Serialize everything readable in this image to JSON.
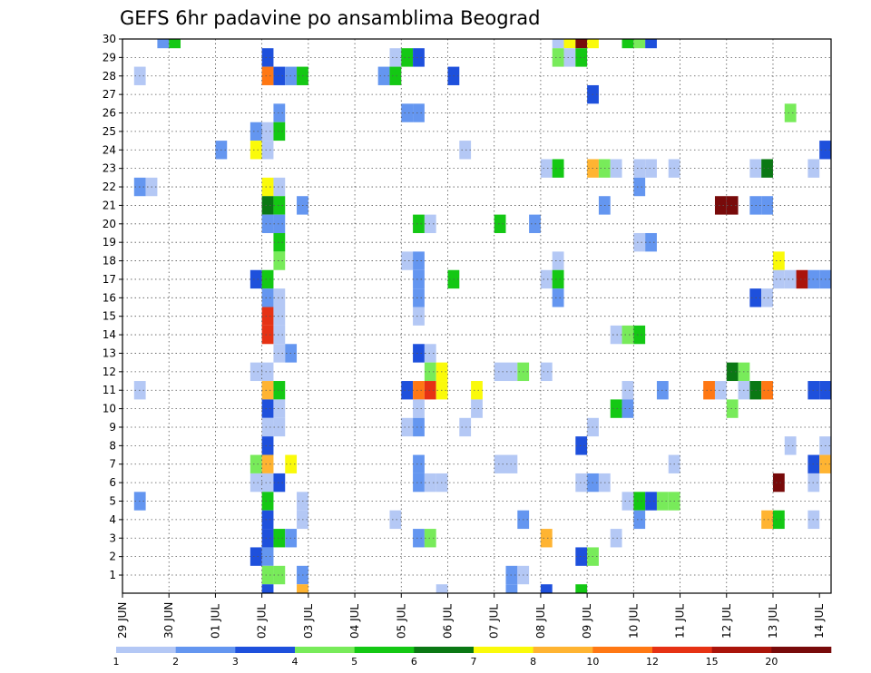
{
  "chart_data": {
    "type": "heatmap",
    "title": "GEFS 6hr padavine po ansamblima Beograd",
    "x_ticks": [
      "29 JUN",
      "30 JUN",
      "01 JUL",
      "02 JUL",
      "03 JUL",
      "04 JUL",
      "05 JUL",
      "06 JUL",
      "07 JUL",
      "08 JUL",
      "09 JUL",
      "10 JUL",
      "11 JUL",
      "12 JUL",
      "13 JUL",
      "14 JUL"
    ],
    "y_ticks": [
      "1",
      "2",
      "3",
      "4",
      "5",
      "6",
      "7",
      "8",
      "9",
      "10",
      "11",
      "12",
      "13",
      "14",
      "15",
      "16",
      "17",
      "18",
      "19",
      "20",
      "21",
      "22",
      "23",
      "24",
      "25",
      "26",
      "27",
      "28",
      "29",
      "30"
    ],
    "x_step_hours": 6,
    "colorbar": {
      "labels": [
        "1",
        "2",
        "3",
        "4",
        "5",
        "6",
        "7",
        "8",
        "10",
        "12",
        "15",
        "20"
      ],
      "colors": [
        "#b4c8f5",
        "#6496f0",
        "#1e50dc",
        "#78eb5a",
        "#14c814",
        "#0a7814",
        "#fafa0a",
        "#ffb432",
        "#ff7814",
        "#e63214",
        "#aa140a",
        "#780a0a"
      ]
    },
    "cells": [
      [
        30,
        3,
        2
      ],
      [
        30,
        4,
        5
      ],
      [
        30,
        37,
        1
      ],
      [
        30,
        38,
        7
      ],
      [
        30,
        39,
        12
      ],
      [
        30,
        40,
        7
      ],
      [
        30,
        43,
        5
      ],
      [
        30,
        44,
        4
      ],
      [
        30,
        45,
        3
      ],
      [
        29,
        12,
        3
      ],
      [
        29,
        23,
        1
      ],
      [
        29,
        24,
        5
      ],
      [
        29,
        25,
        3
      ],
      [
        29,
        37,
        4
      ],
      [
        29,
        38,
        1
      ],
      [
        29,
        39,
        5
      ],
      [
        28,
        1,
        1
      ],
      [
        28,
        12,
        9
      ],
      [
        28,
        13,
        3
      ],
      [
        28,
        14,
        2
      ],
      [
        28,
        15,
        5
      ],
      [
        28,
        22,
        2
      ],
      [
        28,
        23,
        5
      ],
      [
        28,
        28,
        3
      ],
      [
        27,
        40,
        3
      ],
      [
        26,
        13,
        2
      ],
      [
        26,
        24,
        2
      ],
      [
        26,
        25,
        2
      ],
      [
        26,
        57,
        4
      ],
      [
        25,
        11,
        2
      ],
      [
        25,
        12,
        1
      ],
      [
        25,
        13,
        5
      ],
      [
        24,
        8,
        2
      ],
      [
        24,
        11,
        7
      ],
      [
        24,
        12,
        1
      ],
      [
        24,
        29,
        1
      ],
      [
        24,
        60,
        3
      ],
      [
        23,
        36,
        1
      ],
      [
        23,
        37,
        5
      ],
      [
        23,
        40,
        8
      ],
      [
        23,
        41,
        4
      ],
      [
        23,
        42,
        1
      ],
      [
        23,
        44,
        1
      ],
      [
        23,
        45,
        1
      ],
      [
        23,
        47,
        1
      ],
      [
        23,
        54,
        1
      ],
      [
        23,
        55,
        6
      ],
      [
        23,
        59,
        1
      ],
      [
        22,
        1,
        2
      ],
      [
        22,
        2,
        1
      ],
      [
        22,
        12,
        7
      ],
      [
        22,
        13,
        1
      ],
      [
        22,
        44,
        2
      ],
      [
        21,
        12,
        6
      ],
      [
        21,
        13,
        5
      ],
      [
        21,
        15,
        2
      ],
      [
        21,
        41,
        2
      ],
      [
        21,
        51,
        12
      ],
      [
        21,
        52,
        12
      ],
      [
        21,
        54,
        2
      ],
      [
        21,
        55,
        2
      ],
      [
        20,
        12,
        2
      ],
      [
        20,
        13,
        2
      ],
      [
        20,
        25,
        5
      ],
      [
        20,
        26,
        1
      ],
      [
        20,
        32,
        5
      ],
      [
        20,
        35,
        2
      ],
      [
        19,
        13,
        5
      ],
      [
        19,
        44,
        1
      ],
      [
        19,
        45,
        2
      ],
      [
        18,
        13,
        4
      ],
      [
        18,
        24,
        1
      ],
      [
        18,
        25,
        2
      ],
      [
        18,
        37,
        1
      ],
      [
        18,
        56,
        7
      ],
      [
        17,
        11,
        3
      ],
      [
        17,
        12,
        5
      ],
      [
        17,
        25,
        2
      ],
      [
        17,
        28,
        5
      ],
      [
        17,
        36,
        1
      ],
      [
        17,
        37,
        5
      ],
      [
        17,
        56,
        1
      ],
      [
        17,
        57,
        1
      ],
      [
        17,
        58,
        11
      ],
      [
        17,
        59,
        2
      ],
      [
        17,
        60,
        2
      ],
      [
        16,
        12,
        2
      ],
      [
        16,
        13,
        1
      ],
      [
        16,
        25,
        2
      ],
      [
        16,
        37,
        2
      ],
      [
        16,
        54,
        3
      ],
      [
        16,
        55,
        1
      ],
      [
        15,
        12,
        10
      ],
      [
        15,
        13,
        1
      ],
      [
        15,
        25,
        1
      ],
      [
        14,
        12,
        10
      ],
      [
        14,
        13,
        1
      ],
      [
        14,
        42,
        1
      ],
      [
        14,
        43,
        4
      ],
      [
        14,
        44,
        5
      ],
      [
        13,
        13,
        1
      ],
      [
        13,
        14,
        2
      ],
      [
        13,
        25,
        3
      ],
      [
        13,
        26,
        1
      ],
      [
        12,
        11,
        1
      ],
      [
        12,
        12,
        1
      ],
      [
        12,
        26,
        4
      ],
      [
        12,
        27,
        7
      ],
      [
        12,
        32,
        1
      ],
      [
        12,
        33,
        1
      ],
      [
        12,
        34,
        4
      ],
      [
        12,
        36,
        1
      ],
      [
        12,
        52,
        6
      ],
      [
        12,
        53,
        4
      ],
      [
        11,
        1,
        1
      ],
      [
        11,
        12,
        8
      ],
      [
        11,
        13,
        5
      ],
      [
        11,
        24,
        3
      ],
      [
        11,
        25,
        9
      ],
      [
        11,
        26,
        10
      ],
      [
        11,
        27,
        7
      ],
      [
        11,
        30,
        7
      ],
      [
        11,
        43,
        1
      ],
      [
        11,
        46,
        2
      ],
      [
        11,
        50,
        9
      ],
      [
        11,
        51,
        1
      ],
      [
        11,
        53,
        1
      ],
      [
        11,
        54,
        6
      ],
      [
        11,
        55,
        9
      ],
      [
        11,
        59,
        3
      ],
      [
        11,
        60,
        3
      ],
      [
        10,
        12,
        3
      ],
      [
        10,
        13,
        1
      ],
      [
        10,
        25,
        1
      ],
      [
        10,
        30,
        1
      ],
      [
        10,
        42,
        5
      ],
      [
        10,
        43,
        2
      ],
      [
        10,
        52,
        4
      ],
      [
        9,
        12,
        1
      ],
      [
        9,
        13,
        1
      ],
      [
        9,
        24,
        1
      ],
      [
        9,
        25,
        2
      ],
      [
        9,
        29,
        1
      ],
      [
        9,
        40,
        1
      ],
      [
        8,
        12,
        3
      ],
      [
        8,
        39,
        3
      ],
      [
        8,
        57,
        1
      ],
      [
        8,
        60,
        1
      ],
      [
        7,
        11,
        4
      ],
      [
        7,
        12,
        8
      ],
      [
        7,
        14,
        7
      ],
      [
        7,
        25,
        2
      ],
      [
        7,
        32,
        1
      ],
      [
        7,
        33,
        1
      ],
      [
        7,
        47,
        1
      ],
      [
        7,
        59,
        3
      ],
      [
        7,
        60,
        8
      ],
      [
        6,
        11,
        1
      ],
      [
        6,
        12,
        1
      ],
      [
        6,
        13,
        3
      ],
      [
        6,
        25,
        2
      ],
      [
        6,
        26,
        1
      ],
      [
        6,
        27,
        1
      ],
      [
        6,
        39,
        1
      ],
      [
        6,
        40,
        2
      ],
      [
        6,
        41,
        1
      ],
      [
        6,
        56,
        12
      ],
      [
        6,
        59,
        1
      ],
      [
        5,
        1,
        2
      ],
      [
        5,
        12,
        5
      ],
      [
        5,
        15,
        1
      ],
      [
        5,
        43,
        1
      ],
      [
        5,
        44,
        5
      ],
      [
        5,
        45,
        3
      ],
      [
        5,
        46,
        4
      ],
      [
        5,
        47,
        4
      ],
      [
        4,
        12,
        3
      ],
      [
        4,
        15,
        1
      ],
      [
        4,
        23,
        1
      ],
      [
        4,
        34,
        2
      ],
      [
        4,
        44,
        2
      ],
      [
        4,
        55,
        8
      ],
      [
        4,
        56,
        5
      ],
      [
        4,
        59,
        1
      ],
      [
        3,
        12,
        3
      ],
      [
        3,
        13,
        5
      ],
      [
        3,
        14,
        2
      ],
      [
        3,
        25,
        2
      ],
      [
        3,
        26,
        4
      ],
      [
        3,
        36,
        8
      ],
      [
        3,
        42,
        1
      ],
      [
        2,
        11,
        3
      ],
      [
        2,
        12,
        2
      ],
      [
        2,
        39,
        3
      ],
      [
        2,
        40,
        4
      ],
      [
        1,
        12,
        4
      ],
      [
        1,
        13,
        4
      ],
      [
        1,
        15,
        2
      ],
      [
        1,
        33,
        2
      ],
      [
        1,
        34,
        1
      ],
      [
        0,
        12,
        3
      ],
      [
        0,
        15,
        8
      ],
      [
        0,
        27,
        1
      ],
      [
        0,
        33,
        2
      ],
      [
        0,
        36,
        3
      ],
      [
        0,
        39,
        5
      ]
    ]
  }
}
